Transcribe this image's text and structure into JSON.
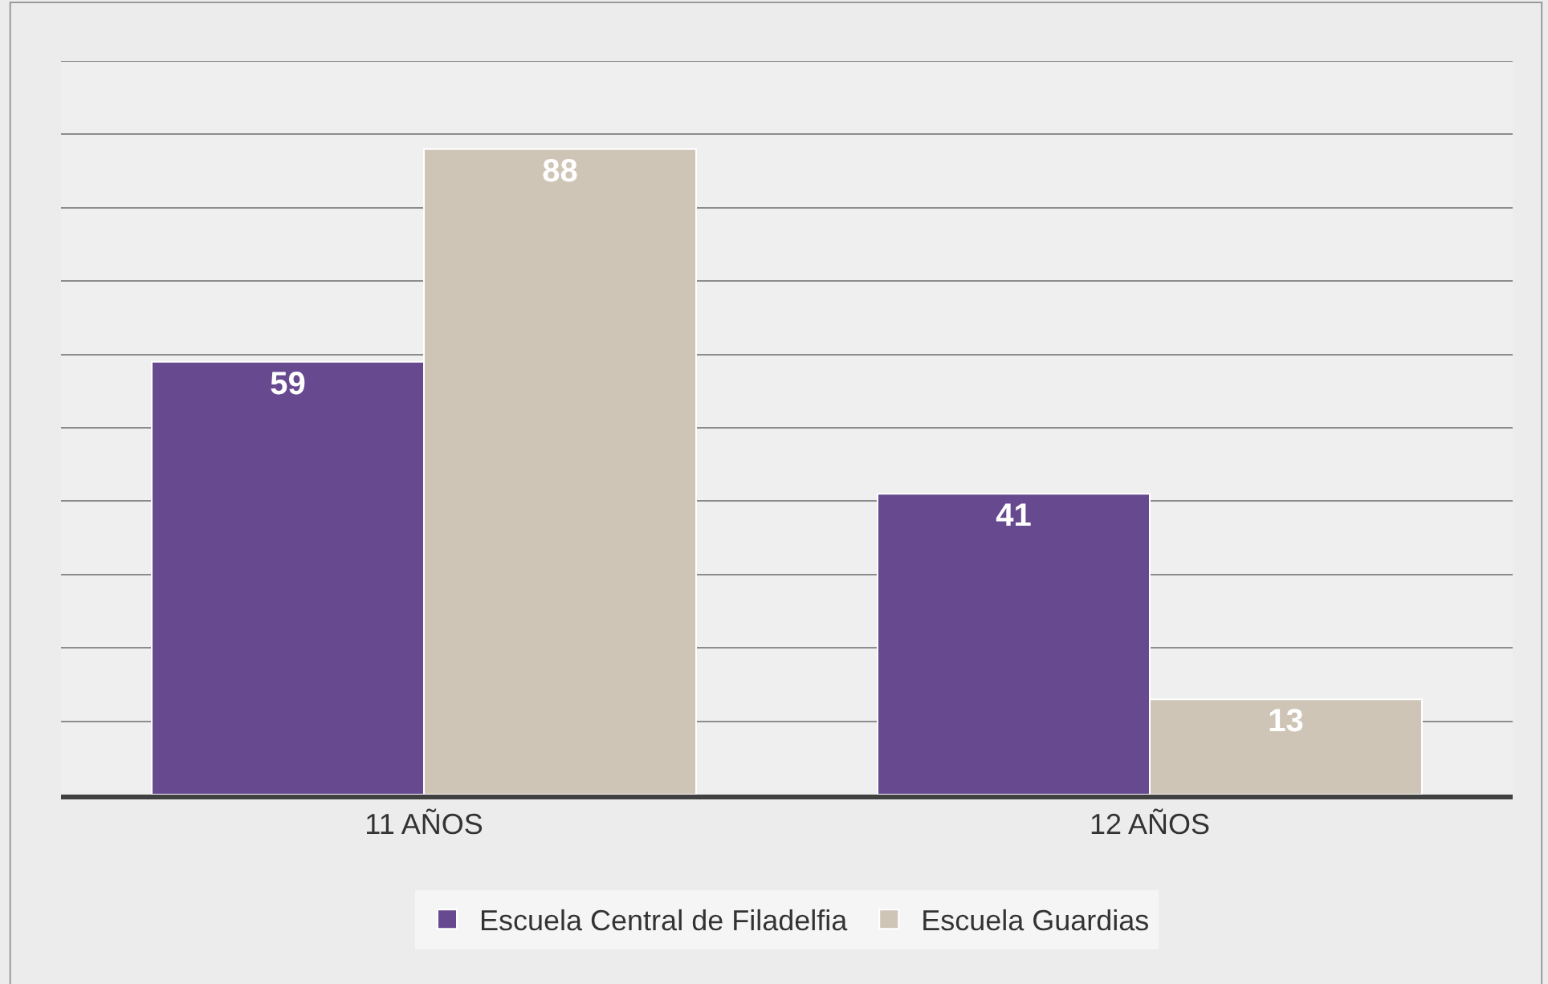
{
  "chart_data": {
    "type": "bar",
    "categories": [
      "11 AÑOS",
      "12 AÑOS"
    ],
    "series": [
      {
        "name": "Escuela Central de Filadelfia",
        "color": "#67498f",
        "values": [
          59,
          41
        ]
      },
      {
        "name": "Escuela Guardias",
        "color": "#cfc5b6",
        "values": [
          88,
          13
        ]
      }
    ],
    "ylim": [
      0,
      100
    ],
    "yticks": [
      {
        "value": 0,
        "label": null
      },
      {
        "value": 10,
        "label": null
      },
      {
        "value": 20,
        "label": null
      },
      {
        "value": 30,
        "label": null
      },
      {
        "value": 40,
        "label": null
      },
      {
        "value": 50,
        "label": null
      },
      {
        "value": 60,
        "label": null
      },
      {
        "value": 70,
        "label": null
      },
      {
        "value": 80,
        "label": null
      },
      {
        "value": 90,
        "label": null
      },
      {
        "value": 100,
        "label": null
      }
    ],
    "tick_labels": "x",
    "grid": "y",
    "legend": "bottom",
    "data_labels": true
  }
}
